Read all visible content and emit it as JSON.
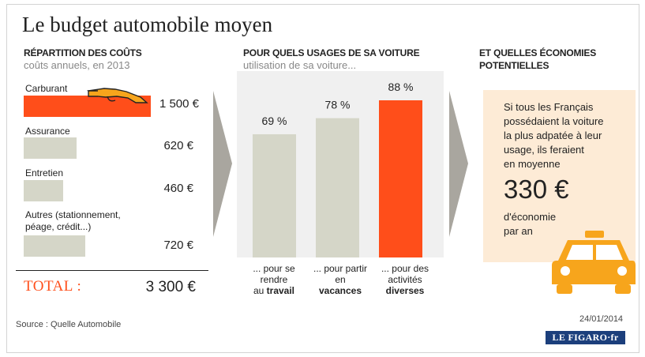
{
  "title": "Le budget automobile moyen",
  "costs": {
    "heading": "RÉPARTITION DES COÛTS",
    "subheading": "coûts annuels, en 2013",
    "items": [
      {
        "label": "Carburant",
        "value": 1500,
        "display": "1 500 €"
      },
      {
        "label": "Assurance",
        "value": 620,
        "display": "620 €"
      },
      {
        "label": "Entretien",
        "value": 460,
        "display": "460 €"
      },
      {
        "label_line1": "Autres (stationnement,",
        "label_line2": "péage, crédit...)",
        "value": 720,
        "display": "720 €"
      }
    ],
    "total_label": "TOTAL :",
    "total_value": "3 300 €"
  },
  "usage": {
    "heading": "POUR QUELS USAGES DE SA VOITURE",
    "subheading": "utilisation de sa voiture...",
    "captions": [
      {
        "line1": "... pour se",
        "line2": "rendre",
        "line3a": "au ",
        "line3b": "travail"
      },
      {
        "line1": "... pour partir",
        "line2": "en",
        "line3a": "",
        "line3b": "vacances"
      },
      {
        "line1": "... pour des",
        "line2": "activités",
        "line3a": "",
        "line3b": "diverses"
      }
    ]
  },
  "chart_data": {
    "type": "bar",
    "categories": [
      "travail",
      "vacances",
      "diverses"
    ],
    "values": [
      69,
      78,
      88
    ],
    "value_labels": [
      "69 %",
      "78 %",
      "88 %"
    ],
    "ylim": [
      0,
      100
    ],
    "colors": [
      "#d5d6c8",
      "#d5d6c8",
      "#ff4e1a"
    ]
  },
  "savings": {
    "heading_line1": "ET QUELLES ÉCONOMIES",
    "heading_line2": "POTENTIELLES",
    "text_lines": [
      "Si tous les Français",
      "possédaient la voiture",
      "la plus adpatée à leur",
      "usage, ils feraient",
      "en moyenne"
    ],
    "amount": "330 €",
    "text_after": [
      "d'économie",
      "par an"
    ]
  },
  "source": "Source : Quelle Automobile",
  "date": "24/01/2014",
  "logo": "LE FIGARO·fr",
  "colors": {
    "accent": "#ff4e1a",
    "bar": "#d5d6c8",
    "box": "#fdebd6",
    "car": "#f7a51c",
    "arrow": "#a9a69f"
  },
  "icons": [
    "fuel-nozzle-icon",
    "taxi-car-icon"
  ]
}
